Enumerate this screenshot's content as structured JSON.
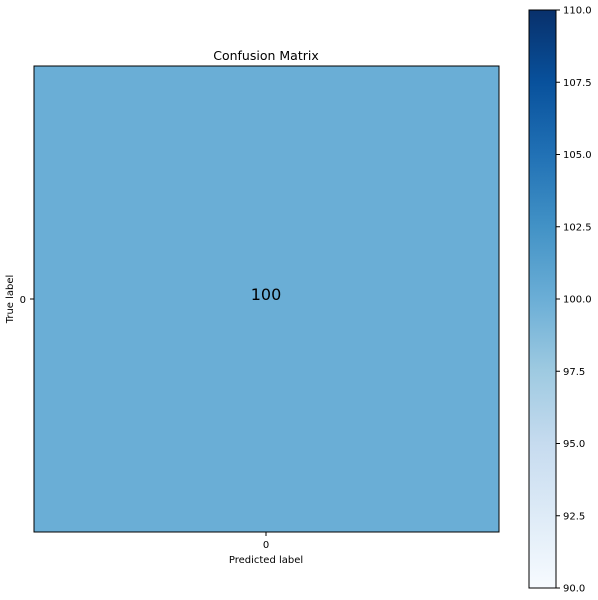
{
  "chart_data": {
    "type": "heatmap",
    "title": "Confusion Matrix",
    "xlabel": "Predicted label",
    "ylabel": "True label",
    "x_categories": [
      "0"
    ],
    "y_categories": [
      "0"
    ],
    "values": [
      [
        100
      ]
    ],
    "cell_labels": [
      [
        "100"
      ]
    ],
    "colormap": "Blues",
    "colorbar": {
      "min": 90.0,
      "max": 110.0,
      "ticks": [
        90.0,
        92.5,
        95.0,
        97.5,
        100.0,
        102.5,
        105.0,
        107.5,
        110.0
      ],
      "tick_labels": [
        "90.0",
        "92.5",
        "95.0",
        "97.5",
        "100.0",
        "102.5",
        "105.0",
        "107.5",
        "110.0"
      ]
    },
    "grid": false
  },
  "colors": {
    "cell": "#6aaed6",
    "colormap_stops": [
      "#f7fbff",
      "#deebf7",
      "#c6dbef",
      "#9ecae1",
      "#6baed6",
      "#4292c6",
      "#2171b5",
      "#08519c",
      "#08306b"
    ]
  }
}
